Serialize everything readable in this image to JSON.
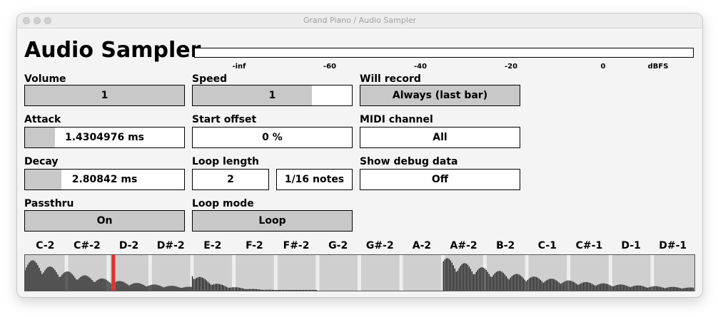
{
  "window": {
    "title": "Grand Piano / Audio Sampler"
  },
  "app": {
    "title": "Audio Sampler"
  },
  "meter": {
    "ticks": [
      "-inf",
      "-60",
      "-40",
      "-20",
      "0",
      "dBFS"
    ]
  },
  "controls": {
    "volume": {
      "label": "Volume",
      "value": "1"
    },
    "speed": {
      "label": "Speed",
      "value": "1",
      "level": 0.75
    },
    "will_record": {
      "label": "Will record",
      "value": "Always (last bar)"
    },
    "attack": {
      "label": "Attack",
      "value": "1.4304976 ms",
      "level": 0.19
    },
    "start_offset": {
      "label": "Start offset",
      "value": "0 %",
      "level": 0
    },
    "midi_channel": {
      "label": "MIDI channel",
      "value": "All"
    },
    "decay": {
      "label": "Decay",
      "value": "2.80842 ms",
      "level": 0.23
    },
    "loop_length": {
      "label": "Loop length",
      "value": "2",
      "unit": "1/16 notes"
    },
    "show_debug": {
      "label": "Show debug data",
      "value": "Off"
    },
    "passthru": {
      "label": "Passthru",
      "value": "On"
    },
    "loop_mode": {
      "label": "Loop mode",
      "value": "Loop"
    }
  },
  "keyboard": {
    "keys": [
      "C-2",
      "C#-2",
      "D-2",
      "D#-2",
      "E-2",
      "F-2",
      "F#-2",
      "G-2",
      "G#-2",
      "A-2",
      "A#-2",
      "B-2",
      "C-1",
      "C#-1",
      "D-1",
      "D#-1"
    ],
    "active_key": "D-2",
    "colors": {
      "background": "#cfcfcf",
      "separator": "#eeeeee",
      "waveform": "#000000",
      "playhead": "#e03030"
    }
  }
}
